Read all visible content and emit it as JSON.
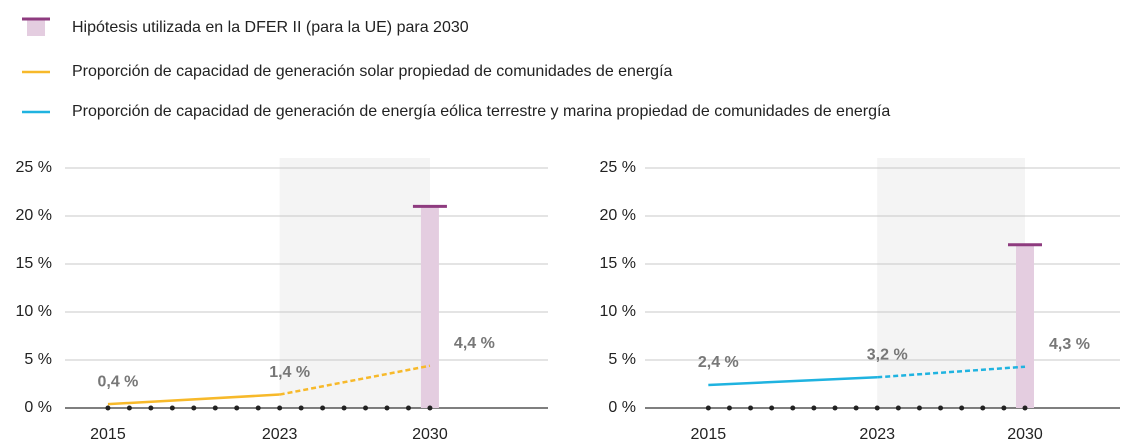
{
  "legend": [
    {
      "name": "Hipótesis utilizada en la DFER II (para la UE) para 2030",
      "color": "#8e3b7f"
    },
    {
      "name": "Proporción de capacidad de generación solar propiedad de comunidades de energía",
      "color": "#f7b92a"
    },
    {
      "name": "Proporción de capacidad de generación de energía eólica terrestre y marina propiedad de comunidades de energía",
      "color": "#1fb3e0"
    }
  ],
  "chart_data": [
    {
      "type": "line",
      "x": [
        2015,
        2023,
        2030
      ],
      "xlim": [
        2013,
        2035.5
      ],
      "xticks": [
        2015,
        2023,
        2030
      ],
      "ylim": [
        0,
        25
      ],
      "yticks": [
        {
          "value": 0,
          "label": "0 %"
        },
        {
          "value": 5,
          "label": "5 %"
        },
        {
          "value": 10,
          "label": "10 %"
        },
        {
          "value": 15,
          "label": "15 %"
        },
        {
          "value": 20,
          "label": "20 %"
        },
        {
          "value": 25,
          "label": "25 %"
        }
      ],
      "grid": true,
      "projection_start": 2023,
      "series": [
        {
          "color": "#f7b92a",
          "values": [
            0.4,
            1.4,
            4.4
          ],
          "value_labels": [
            "0,4 %",
            "1,4 %",
            "4,4 %"
          ]
        }
      ],
      "target": {
        "x": 2030,
        "value": 21,
        "color": "#8e3b7f",
        "fill": "#e4cde0"
      }
    },
    {
      "type": "line",
      "x": [
        2015,
        2023,
        2030
      ],
      "xlim": [
        2012,
        2034.5
      ],
      "xticks": [
        2015,
        2023,
        2030
      ],
      "ylim": [
        0,
        25
      ],
      "yticks": [
        {
          "value": 0,
          "label": "0 %"
        },
        {
          "value": 5,
          "label": "5 %"
        },
        {
          "value": 10,
          "label": "10 %"
        },
        {
          "value": 15,
          "label": "15 %"
        },
        {
          "value": 20,
          "label": "20 %"
        },
        {
          "value": 25,
          "label": "25 %"
        }
      ],
      "grid": true,
      "projection_start": 2023,
      "series": [
        {
          "color": "#1fb3e0",
          "values": [
            2.4,
            3.2,
            4.3
          ],
          "value_labels": [
            "2,4 %",
            "3,2 %",
            "4,3 %"
          ]
        }
      ],
      "target": {
        "x": 2030,
        "value": 17,
        "color": "#8e3b7f",
        "fill": "#e4cde0"
      }
    }
  ]
}
